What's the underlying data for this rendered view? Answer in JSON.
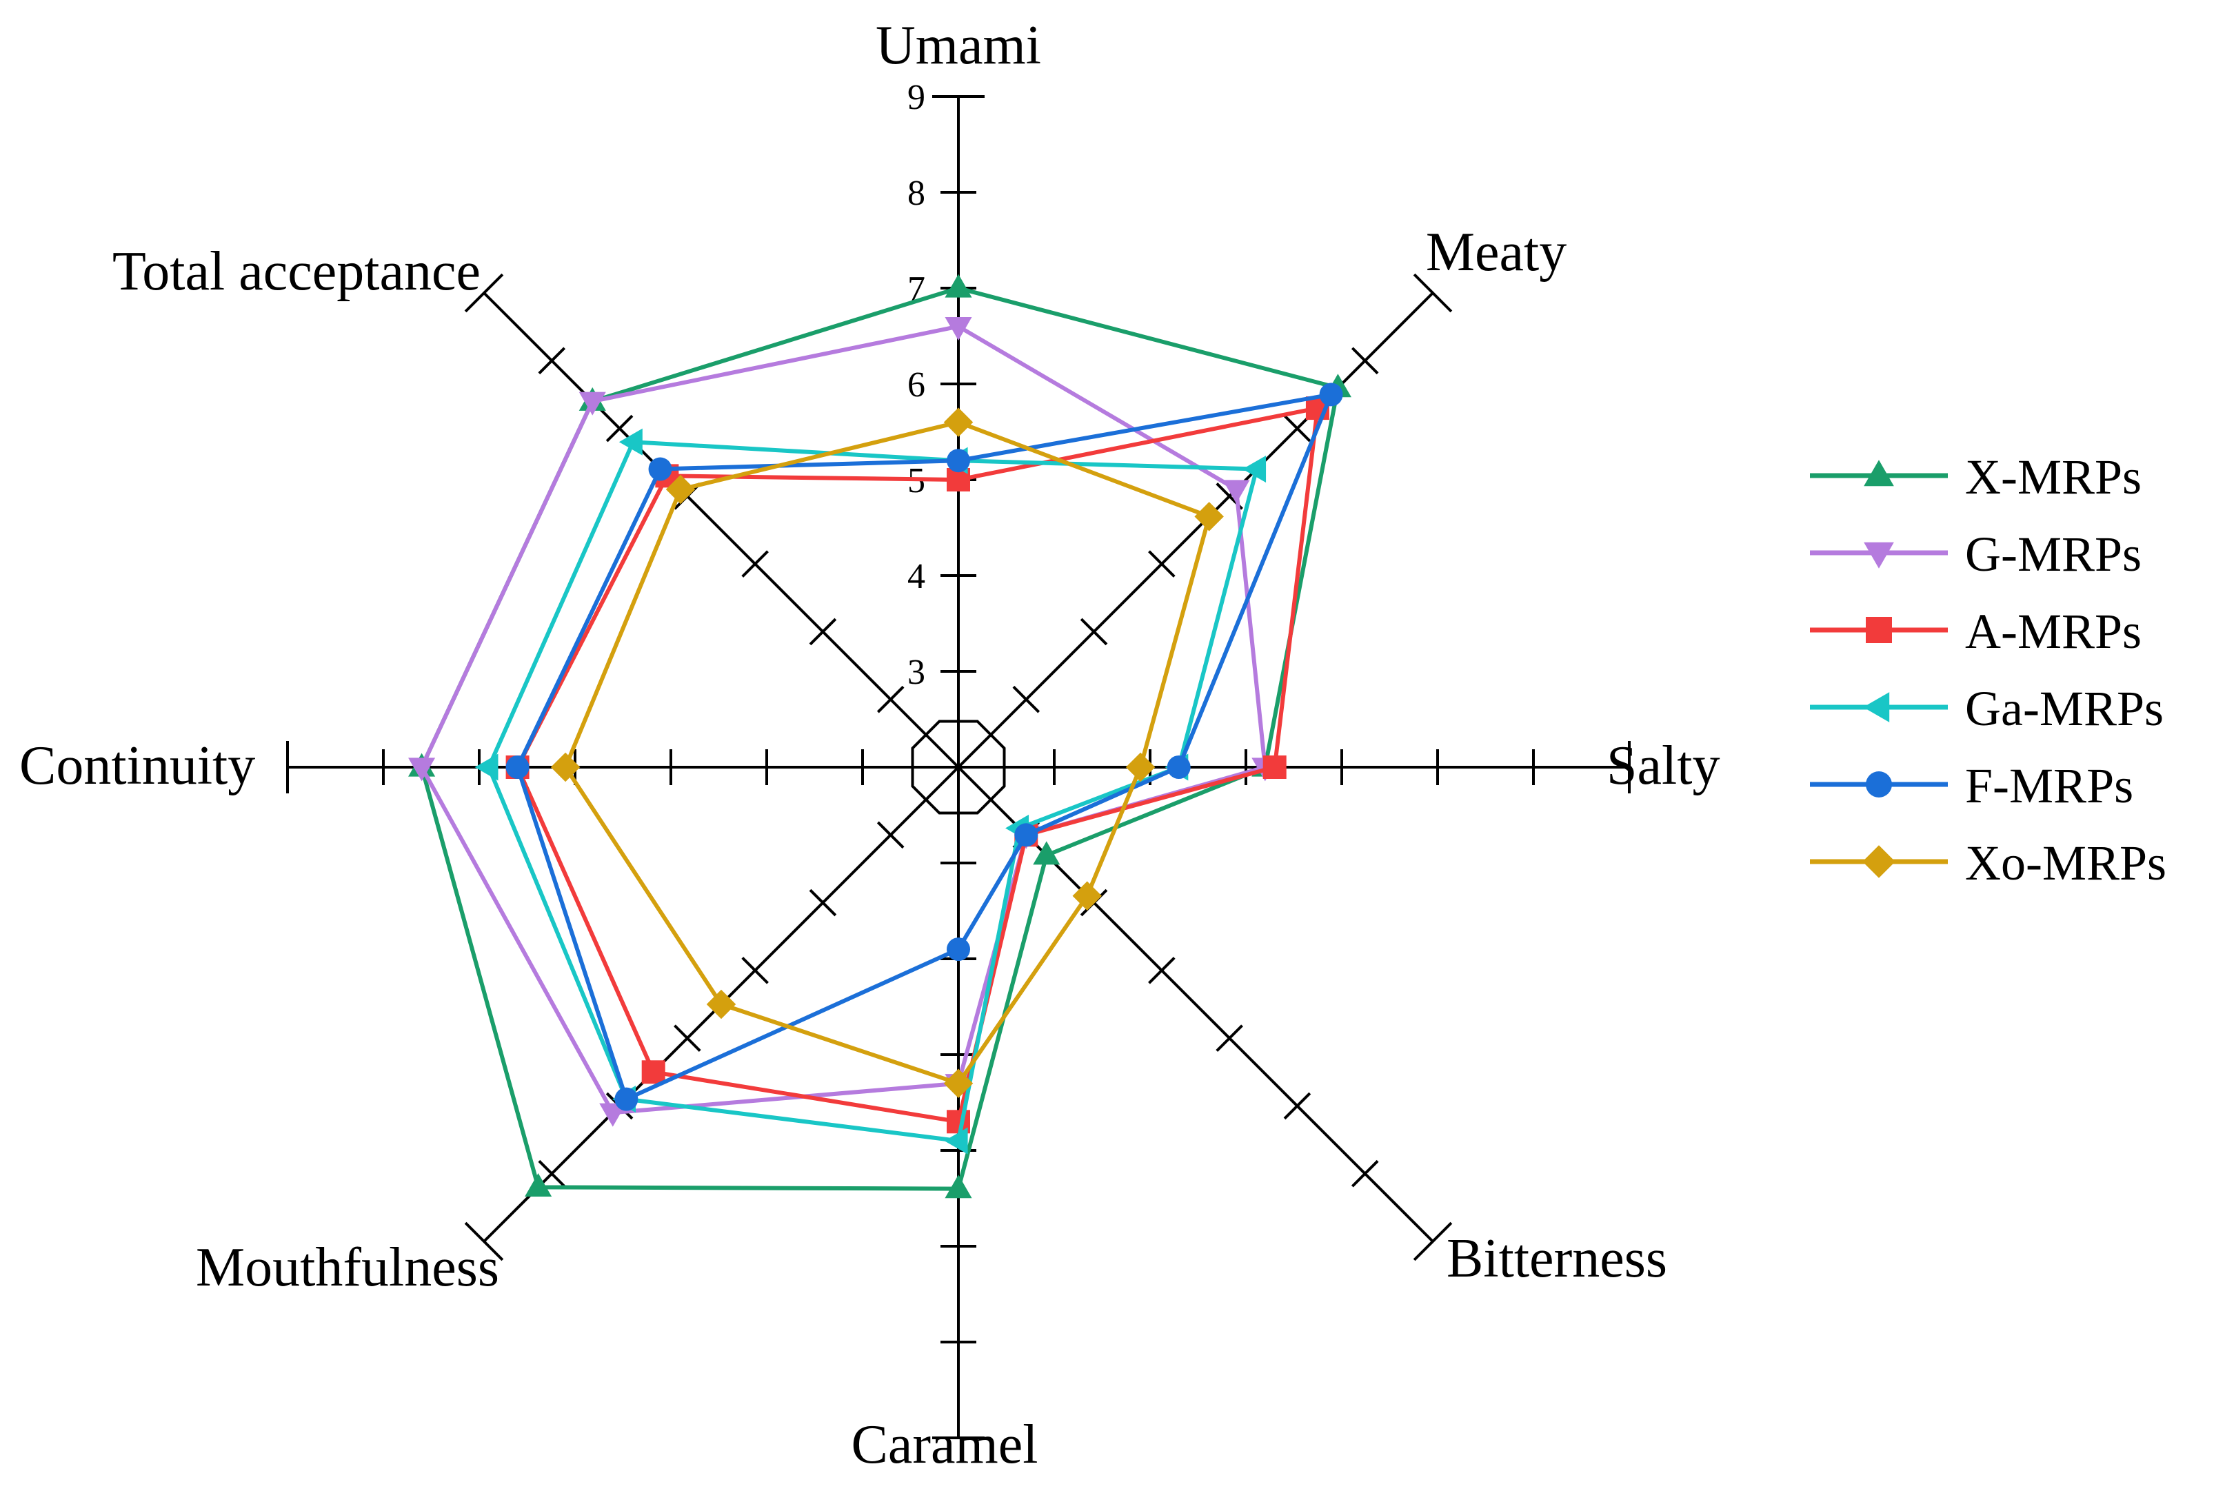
{
  "chart_data": {
    "type": "radar",
    "axes": [
      "Umami",
      "Meaty",
      "Salty",
      "Bitterness",
      "Caramel",
      "Mouthfulness",
      "Continuity",
      "Total acceptance"
    ],
    "radial_ticks": [
      "3",
      "4",
      "5",
      "6",
      "7",
      "8",
      "9"
    ],
    "range": [
      2,
      9
    ],
    "legend_position": "right",
    "series": [
      {
        "name": "X-MRPs",
        "color": "#1a9e6a",
        "marker": "triangle-up",
        "values": [
          7.0,
          7.6,
          5.2,
          3.3,
          6.4,
          8.2,
          7.6,
          7.4
        ]
      },
      {
        "name": "G-MRPs",
        "color": "#b57bde",
        "marker": "triangle-down",
        "values": [
          6.6,
          6.1,
          5.2,
          3.0,
          5.3,
          7.1,
          7.6,
          7.4
        ]
      },
      {
        "name": "A-MRPs",
        "color": "#f23b3b",
        "marker": "square",
        "values": [
          5.0,
          7.3,
          5.3,
          3.0,
          5.7,
          6.5,
          6.6,
          6.3
        ]
      },
      {
        "name": "Ga-MRPs",
        "color": "#19c6c6",
        "marker": "triangle-left",
        "values": [
          5.2,
          6.4,
          4.3,
          2.9,
          5.9,
          6.9,
          6.9,
          6.8
        ]
      },
      {
        "name": "F-MRPs",
        "color": "#1b6fd8",
        "marker": "circle",
        "values": [
          5.2,
          7.5,
          4.3,
          3.0,
          3.9,
          6.9,
          6.6,
          6.4
        ]
      },
      {
        "name": "Xo-MRPs",
        "color": "#d4a00e",
        "marker": "diamond",
        "values": [
          5.6,
          5.7,
          3.9,
          3.9,
          5.3,
          5.5,
          6.1,
          6.1
        ]
      }
    ]
  }
}
